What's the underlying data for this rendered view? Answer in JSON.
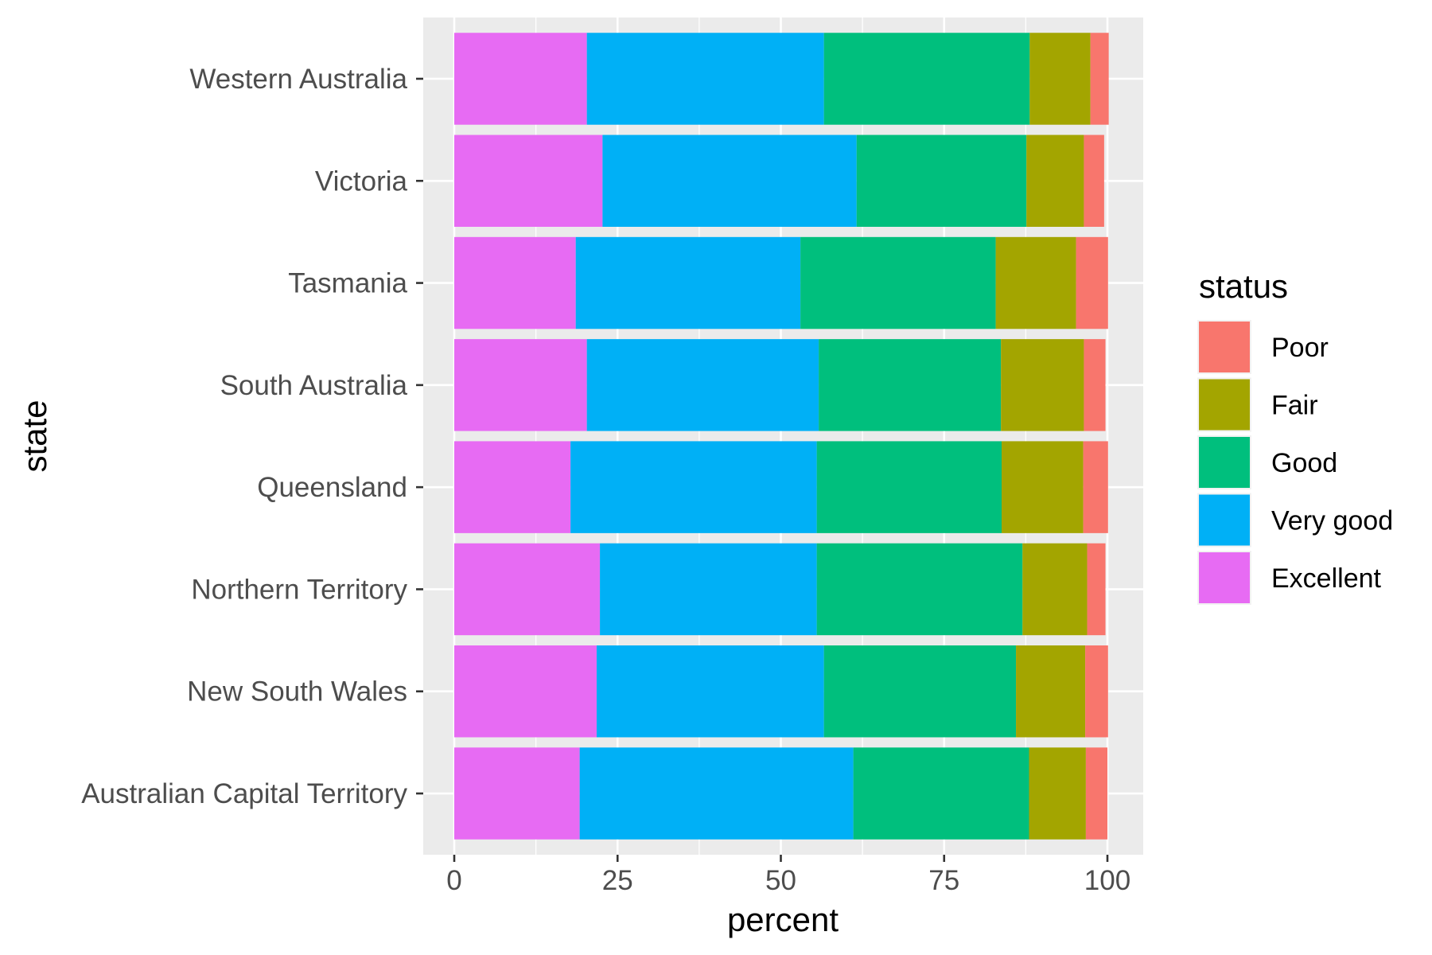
{
  "chart_data": {
    "type": "bar",
    "orientation": "horizontal",
    "stacked": true,
    "xlabel": "percent",
    "ylabel": "state",
    "xlim": [
      0,
      100
    ],
    "x_ticks": [
      "0",
      "25",
      "50",
      "75",
      "100"
    ],
    "grid": true,
    "legend_position": "right",
    "legend": {
      "title": "status",
      "entries": [
        {
          "name": "Poor",
          "color": "#F8766D"
        },
        {
          "name": "Fair",
          "color": "#A3A500"
        },
        {
          "name": "Good",
          "color": "#00BF7D"
        },
        {
          "name": "Very good",
          "color": "#00B0F6"
        },
        {
          "name": "Excellent",
          "color": "#E76BF3"
        }
      ]
    },
    "categories": [
      "Australian Capital Territory",
      "New South Wales",
      "Northern Territory",
      "Queensland",
      "South Australia",
      "Tasmania",
      "Victoria",
      "Western Australia"
    ],
    "series": [
      {
        "name": "Excellent",
        "color": "#E76BF3",
        "values": [
          19.2,
          21.8,
          22.3,
          17.8,
          20.3,
          18.6,
          22.7,
          20.3
        ]
      },
      {
        "name": "Very good",
        "color": "#00B0F6",
        "values": [
          41.9,
          34.8,
          33.2,
          37.7,
          35.5,
          34.4,
          38.9,
          36.3
        ]
      },
      {
        "name": "Good",
        "color": "#00BF7D",
        "values": [
          26.9,
          29.4,
          31.5,
          28.3,
          27.9,
          29.9,
          26.0,
          31.5
        ]
      },
      {
        "name": "Fair",
        "color": "#A3A500",
        "values": [
          8.7,
          10.6,
          9.9,
          12.5,
          12.7,
          12.3,
          8.8,
          9.3
        ]
      },
      {
        "name": "Poor",
        "color": "#F8766D",
        "values": [
          3.3,
          3.5,
          2.8,
          3.8,
          3.3,
          4.9,
          3.1,
          2.8
        ]
      }
    ]
  }
}
